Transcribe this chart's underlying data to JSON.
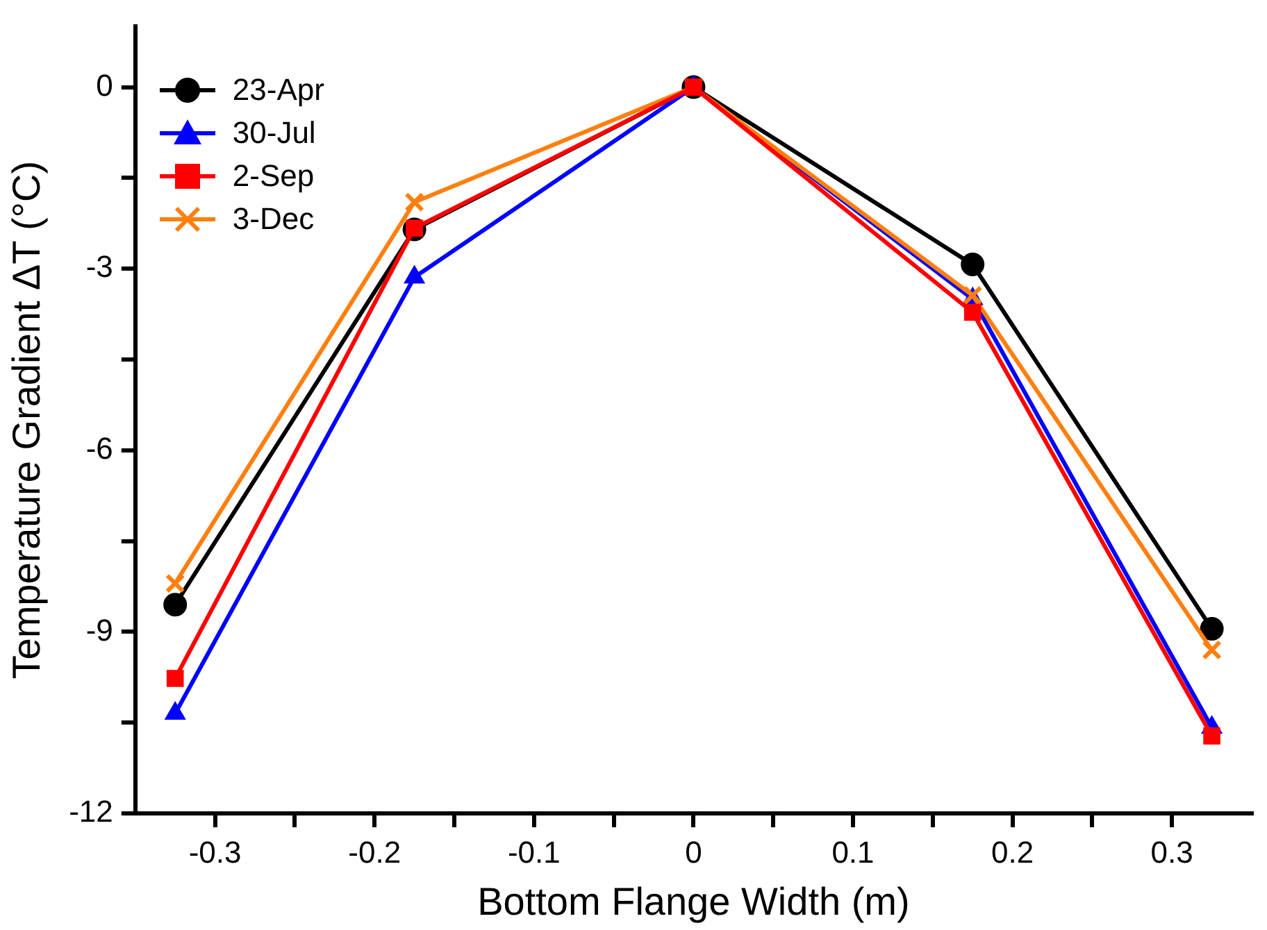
{
  "chart_data": {
    "type": "line",
    "xlabel": "Bottom Flange Width (m)",
    "ylabel": "Temperature Gradient ΔT (°C)",
    "x": [
      -0.325,
      -0.175,
      0,
      0.175,
      0.325
    ],
    "series": [
      {
        "name": "23-Apr",
        "color": "#000000",
        "marker": "circle",
        "values": [
          -8.55,
          -2.35,
          0,
          -2.93,
          -8.95
        ]
      },
      {
        "name": "30-Jul",
        "color": "#0000ff",
        "marker": "triangle",
        "values": [
          -10.35,
          -3.14,
          0,
          -3.5,
          -10.58
        ]
      },
      {
        "name": "2-Sep",
        "color": "#ff0000",
        "marker": "square",
        "values": [
          -9.77,
          -2.33,
          0,
          -3.72,
          -10.72
        ]
      },
      {
        "name": "3-Dec",
        "color": "#ff7f0e",
        "marker": "cross",
        "values": [
          -8.2,
          -1.9,
          0,
          -3.44,
          -9.3
        ]
      }
    ],
    "xlim": [
      -0.35,
      0.35
    ],
    "xticks": [
      -0.3,
      {
        "value": -0.25,
        "label": null
      },
      -0.2,
      {
        "value": -0.15,
        "label": null
      },
      -0.1,
      {
        "value": -0.05,
        "label": null
      },
      0,
      {
        "value": 0.05,
        "label": null
      },
      0.1,
      {
        "value": 0.15,
        "label": null
      },
      0.2,
      {
        "value": 0.25,
        "label": null
      },
      0.3
    ],
    "ylim": [
      -12,
      1
    ],
    "yticks": [
      -12,
      {
        "value": -10.5,
        "label": null
      },
      -9,
      {
        "value": -7.5,
        "label": null
      },
      -6,
      {
        "value": -4.5,
        "label": null
      },
      -3,
      {
        "value": -1.5,
        "label": null
      },
      0
    ],
    "grid": false,
    "legend": "top left",
    "line_style": "solid"
  }
}
